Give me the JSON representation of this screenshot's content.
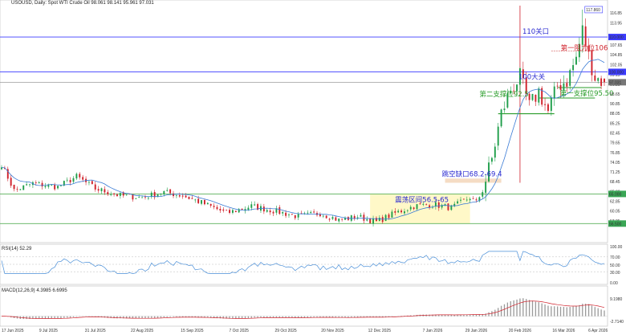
{
  "header": {
    "symbol_line": "USOUSD, Daily:  Spot WTI Crude Oil   98.061 98.141 95.961 97.031",
    "rsi_label": "RSI(14) 52.29",
    "macd_label": "MACD(12,26,9) 4.3985 6.6995"
  },
  "chart_data": {
    "type": "candlestick",
    "symbol": "USOUSD",
    "timeframe": "Daily",
    "title": "Spot WTI Crude Oil",
    "ohlc_last": {
      "open": 98.061,
      "high": 98.141,
      "low": 95.961,
      "close": 97.031
    },
    "price_axis": {
      "min": 51.5,
      "max": 119.0,
      "ticks": [
        116.85,
        113.95,
        110.0,
        107.65,
        104.85,
        102.05,
        99.15,
        96.35,
        93.65,
        90.85,
        88.05,
        85.25,
        82.45,
        79.65,
        76.85,
        74.05,
        71.25,
        68.45,
        65.6,
        62.85,
        60.05,
        57.25
      ]
    },
    "x_axis": {
      "tick_labels": [
        "17 Jun 2025",
        "9 Jul 2025",
        "31 Jul 2025",
        "22 Aug 2025",
        "15 Sep 2025",
        "7 Oct 2025",
        "29 Oct 2025",
        "20 Nov 2025",
        "12 Dec 2025",
        "7 Jan 2026",
        "29 Jan 2026",
        "20 Feb 2026",
        "16 Mar 2026",
        "6 Apr 2026"
      ]
    },
    "price_badges": {
      "top_high": "117.860",
      "level_110": "110.000",
      "level_100": "100.000",
      "current": "97.031",
      "level_65": "65.000",
      "level_56": "56.500"
    },
    "anchors": [
      {
        "i": 0,
        "c": 73.5
      },
      {
        "i": 4,
        "c": 66.0
      },
      {
        "i": 10,
        "c": 68.0
      },
      {
        "i": 18,
        "c": 67.0
      },
      {
        "i": 24,
        "c": 70.0
      },
      {
        "i": 30,
        "c": 66.5
      },
      {
        "i": 38,
        "c": 64.5
      },
      {
        "i": 45,
        "c": 64.0
      },
      {
        "i": 52,
        "c": 65.5
      },
      {
        "i": 58,
        "c": 64.5
      },
      {
        "i": 64,
        "c": 62.5
      },
      {
        "i": 72,
        "c": 59.5
      },
      {
        "i": 80,
        "c": 61.5
      },
      {
        "i": 88,
        "c": 60.0
      },
      {
        "i": 95,
        "c": 58.5
      },
      {
        "i": 102,
        "c": 59.5
      },
      {
        "i": 108,
        "c": 57.5
      },
      {
        "i": 114,
        "c": 58.5
      },
      {
        "i": 120,
        "c": 57.0
      },
      {
        "i": 126,
        "c": 59.5
      },
      {
        "i": 132,
        "c": 61.5
      },
      {
        "i": 138,
        "c": 62.0
      },
      {
        "i": 144,
        "c": 61.0
      },
      {
        "i": 150,
        "c": 64.0
      },
      {
        "i": 152,
        "c": 62.5
      },
      {
        "i": 154,
        "c": 66.0
      },
      {
        "i": 157,
        "c": 75.0
      },
      {
        "i": 160,
        "c": 88.0
      },
      {
        "i": 163,
        "c": 95.0
      },
      {
        "i": 166,
        "c": 98.5
      },
      {
        "i": 169,
        "c": 90.0
      },
      {
        "i": 172,
        "c": 94.5
      },
      {
        "i": 175,
        "c": 88.5
      },
      {
        "i": 178,
        "c": 96.0
      },
      {
        "i": 181,
        "c": 97.5
      },
      {
        "i": 184,
        "c": 104.0
      },
      {
        "i": 186,
        "c": 112.0
      },
      {
        "i": 188,
        "c": 104.5
      },
      {
        "i": 190,
        "c": 98.5
      },
      {
        "i": 193,
        "c": 97.031
      }
    ],
    "levels": [
      {
        "name": "resistance_110",
        "value": 110.0,
        "color": "#3b3bff",
        "label": "110关口"
      },
      {
        "name": "resistance_100",
        "value": 100.0,
        "color": "#3b3bff",
        "label": "100大关"
      },
      {
        "name": "close_line",
        "value": 97.031,
        "color": "#888888"
      },
      {
        "name": "support_65",
        "value": 65.0,
        "color": "#5ab05a"
      },
      {
        "name": "support_56_5",
        "value": 56.5,
        "color": "#5ab05a"
      }
    ],
    "annotations": {
      "resistance_1": "第一阻力位106",
      "support_1": "第一支撑位95.50",
      "support_2": "第二支撑位92.5",
      "gap": "跳空缺口68.2-69.4",
      "range": "震荡区间56.5-65"
    },
    "rsi": {
      "period": 14,
      "value": 52.29,
      "ticks": [
        "100.00",
        "70.00",
        "50.00",
        "30.00",
        "0.00"
      ]
    },
    "macd": {
      "fast": 12,
      "slow": 26,
      "signal": 9,
      "macd": 4.3985,
      "signal_value": 6.6995,
      "ticks": [
        "9.1980",
        "-2.7140"
      ]
    },
    "colors": {
      "up": "#1f9e4a",
      "down": "#d0202a",
      "ma": "#3a7bd5",
      "resistance": "#3b3bff",
      "support": "#5ab05a"
    }
  }
}
